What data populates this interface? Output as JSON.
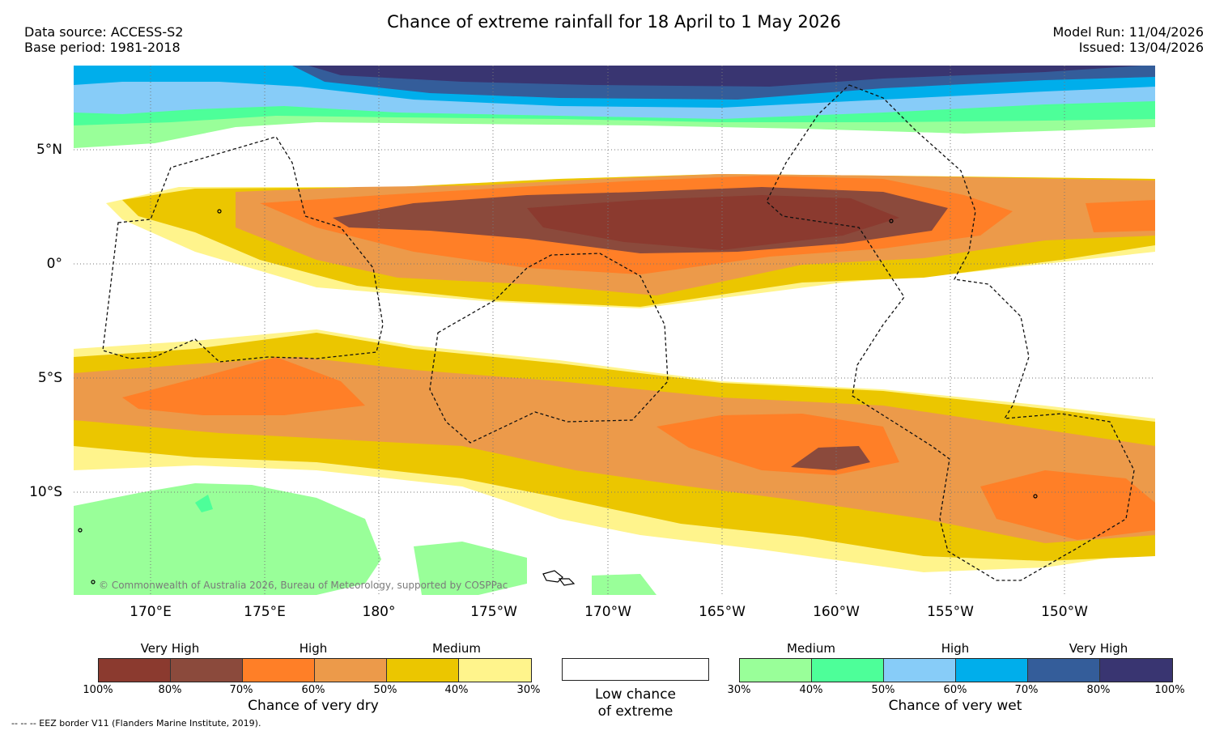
{
  "title": "Chance of extreme rainfall for 18 April to 1 May 2026",
  "header": {
    "data_source": "Data source: ACCESS-S2",
    "base_period": "Base period: 1981-2018",
    "model_run": "Model Run: 11/04/2026",
    "issued": "Issued: 13/04/2026"
  },
  "map": {
    "lat_labels": [
      "5°N",
      "0°",
      "5°S",
      "10°S"
    ],
    "lon_labels": [
      "170°E",
      "175°E",
      "180°",
      "175°W",
      "170°W",
      "165°W",
      "160°W",
      "155°W",
      "150°W"
    ],
    "copyright": "© Commonwealth of Australia 2026, Bureau of Meteorology, supported by COSPPac"
  },
  "legend": {
    "dry": {
      "categories": [
        "Very High",
        "High",
        "Medium"
      ],
      "ticks": [
        "100%",
        "80%",
        "70%",
        "60%",
        "50%",
        "40%",
        "30%"
      ],
      "colors": [
        "#8b3a2f",
        "#8b4a3c",
        "#ff7f27",
        "#ec9a4a",
        "#ebc600",
        "#fff48c"
      ],
      "caption": "Chance of very dry"
    },
    "low": {
      "line1": "Low chance",
      "line2": "of extreme"
    },
    "wet": {
      "categories": [
        "Medium",
        "High",
        "Very High"
      ],
      "ticks": [
        "30%",
        "40%",
        "50%",
        "60%",
        "70%",
        "80%",
        "100%"
      ],
      "colors": [
        "#99ff99",
        "#4dff99",
        "#87ccf8",
        "#00aeeb",
        "#345d9a",
        "#393571"
      ],
      "caption": "Chance of very wet"
    }
  },
  "footnote": "--  --  -- EEZ border V11 (Flanders Marine Institute, 2019)."
}
